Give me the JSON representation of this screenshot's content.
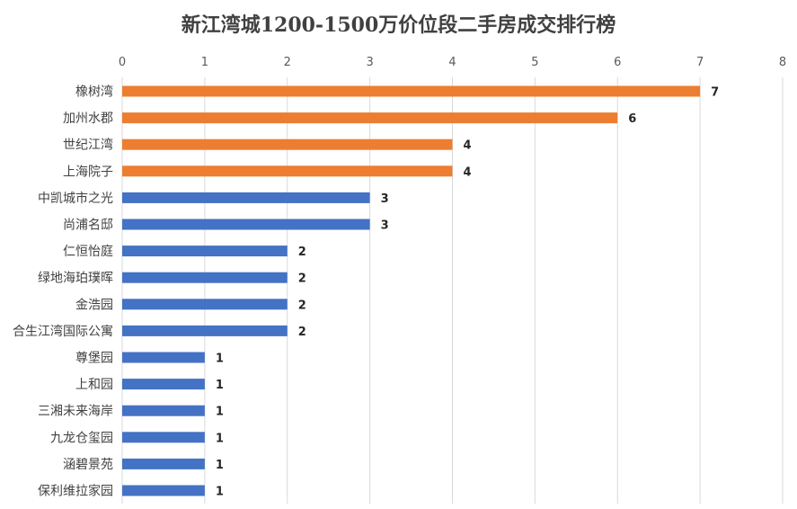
{
  "chart_data": {
    "type": "bar",
    "orientation": "horizontal",
    "title": "新江湾城1200-1500万价位段二手房成交排行榜",
    "xlabel": "",
    "ylabel": "",
    "xlim": [
      0,
      8
    ],
    "ticks": [
      "0",
      "1",
      "2",
      "3",
      "4",
      "5",
      "6",
      "7",
      "8"
    ],
    "grid": true,
    "axis_position": "top",
    "categories": [
      "橡树湾",
      "加州水郡",
      "世纪江湾",
      "上海院子",
      "中凯城市之光",
      "尚浦名邸",
      "仁恒怡庭",
      "绿地海珀璞晖",
      "金浩园",
      "合生江湾国际公寓",
      "尊堡园",
      "上和园",
      "三湘未来海岸",
      "九龙仓玺园",
      "涵碧景苑",
      "保利维拉家园"
    ],
    "values": [
      7,
      6,
      4,
      4,
      3,
      3,
      2,
      2,
      2,
      2,
      1,
      1,
      1,
      1,
      1,
      1
    ],
    "colors": {
      "highlight": "#ed7d31",
      "normal": "#4472c4",
      "highlight_count": 4
    }
  }
}
